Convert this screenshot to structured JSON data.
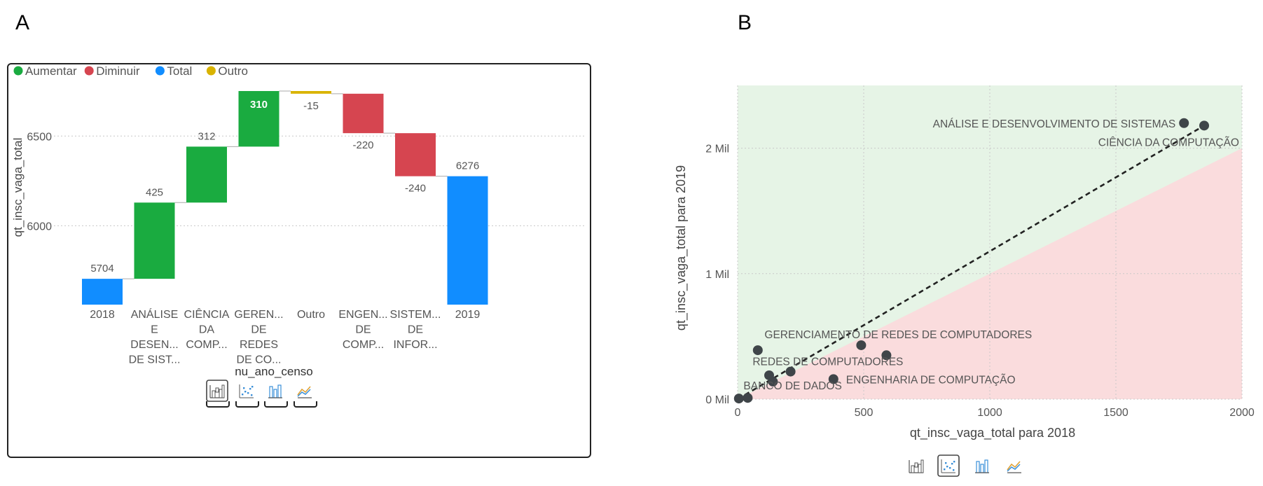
{
  "panel_labels": {
    "a": "A",
    "b": "B"
  },
  "waterfall_legend": [
    {
      "label": "Aumentar",
      "color": "#1aab40"
    },
    {
      "label": "Diminuir",
      "color": "#d64550"
    },
    {
      "label": "Total",
      "color": "#118dff"
    },
    {
      "label": "Outro",
      "color": "#d9b300"
    }
  ],
  "scatter_regions": {
    "above_color": "#e6f4e6",
    "below_color": "#fadcdd"
  },
  "visual_type_icons": [
    {
      "name": "waterfall-chart-icon",
      "selected": true
    },
    {
      "name": "scatter-chart-icon",
      "selected": false
    },
    {
      "name": "column-chart-icon",
      "selected": false
    },
    {
      "name": "line-area-chart-icon",
      "selected": false
    }
  ],
  "scatter_icons": [
    {
      "name": "waterfall-chart-icon",
      "selected": false
    },
    {
      "name": "scatter-chart-icon",
      "selected": true
    },
    {
      "name": "column-chart-icon",
      "selected": false
    },
    {
      "name": "line-area-chart-icon",
      "selected": false
    }
  ],
  "chart_data": [
    {
      "type": "bar",
      "subtype": "waterfall",
      "xlabel": "nu_ano_censo",
      "ylabel": "qt_insc_vaga_total",
      "ylim": [
        5560,
        6790
      ],
      "yticks": [
        6000,
        6500
      ],
      "grid": true,
      "legend_placement": "top-left",
      "categories": [
        [
          "2018"
        ],
        [
          "ANÁLISE",
          "E",
          "DESEN...",
          "DE SIST..."
        ],
        [
          "CIÊNCIA",
          "DA",
          "COMP..."
        ],
        [
          "GEREN...",
          "DE",
          "REDES",
          "DE CO..."
        ],
        [
          "Outro"
        ],
        [
          "ENGEN...",
          "DE",
          "COMP..."
        ],
        [
          "SISTEM...",
          "DE",
          "INFOR..."
        ],
        [
          "2019"
        ]
      ],
      "steps": [
        {
          "kind": "total",
          "value": 5704,
          "label": "5704"
        },
        {
          "kind": "increase",
          "value": 425,
          "label": "425"
        },
        {
          "kind": "increase",
          "value": 312,
          "label": "312"
        },
        {
          "kind": "increase",
          "value": 310,
          "label": "310"
        },
        {
          "kind": "other",
          "value": -15,
          "label": "-15"
        },
        {
          "kind": "decrease",
          "value": -220,
          "label": "-220"
        },
        {
          "kind": "decrease",
          "value": -240,
          "label": "-240"
        },
        {
          "kind": "total",
          "value": 6276,
          "label": "6276"
        }
      ]
    },
    {
      "type": "scatter",
      "xlabel": "qt_insc_vaga_total para 2018",
      "ylabel": "qt_insc_vaga_total para 2019",
      "xlim": [
        0,
        2000
      ],
      "ylim": [
        0,
        2500
      ],
      "xticks": [
        {
          "value": 0,
          "label": "0"
        },
        {
          "value": 500,
          "label": "500"
        },
        {
          "value": 1000,
          "label": "1000"
        },
        {
          "value": 1500,
          "label": "1500"
        },
        {
          "value": 2000,
          "label": "2000"
        }
      ],
      "yticks": [
        {
          "value": 0,
          "label": "0 Mil"
        },
        {
          "value": 1000,
          "label": "1 Mil"
        },
        {
          "value": 2000,
          "label": "2 Mil"
        }
      ],
      "grid": true,
      "trendline": {
        "from": [
          0,
          0
        ],
        "to": [
          1850,
          2180
        ],
        "style": "dashed"
      },
      "points": [
        {
          "x": 1770,
          "y": 2200,
          "label": "ANÁLISE E DESENVOLVIMENTO DE SISTEMAS",
          "label_pos": "left"
        },
        {
          "x": 1850,
          "y": 2180,
          "label": "CIÊNCIA DA COMPUTAÇÃO",
          "label_pos": "below-left"
        },
        {
          "x": 80,
          "y": 390,
          "label": "",
          "label_pos": ""
        },
        {
          "x": 490,
          "y": 430,
          "label": "GERENCIAMENTO DE REDES DE COMPUTADORES",
          "label_pos": "above-left"
        },
        {
          "x": 590,
          "y": 350,
          "label": "REDES DE COMPUTADORES",
          "label_pos": "below-left"
        },
        {
          "x": 210,
          "y": 220,
          "label": "",
          "label_pos": ""
        },
        {
          "x": 125,
          "y": 190,
          "label": "",
          "label_pos": ""
        },
        {
          "x": 380,
          "y": 160,
          "label": "ENGENHARIA DE COMPUTAÇÃO",
          "label_pos": "right"
        },
        {
          "x": 140,
          "y": 140,
          "label": "",
          "label_pos": ""
        },
        {
          "x": 40,
          "y": 10,
          "label": "BANCO DE DADOS",
          "label_pos": "above-right"
        },
        {
          "x": 5,
          "y": 5,
          "label": "",
          "label_pos": ""
        }
      ]
    }
  ]
}
